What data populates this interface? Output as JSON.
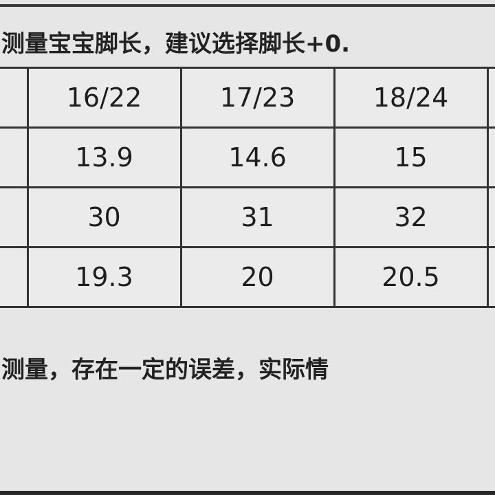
{
  "top_note": "测量宝宝脚长，建议选择脚长+0.",
  "bottom_note": "测量，存在一定的误差，实际情",
  "table": {
    "rows": [
      [
        "",
        "16/22",
        "17/23",
        "18/24",
        ""
      ],
      [
        "",
        "13.9",
        "14.6",
        "15",
        ""
      ],
      [
        "",
        "30",
        "31",
        "32",
        ""
      ],
      [
        "",
        "19.3",
        "20",
        "20.5",
        ""
      ]
    ]
  }
}
